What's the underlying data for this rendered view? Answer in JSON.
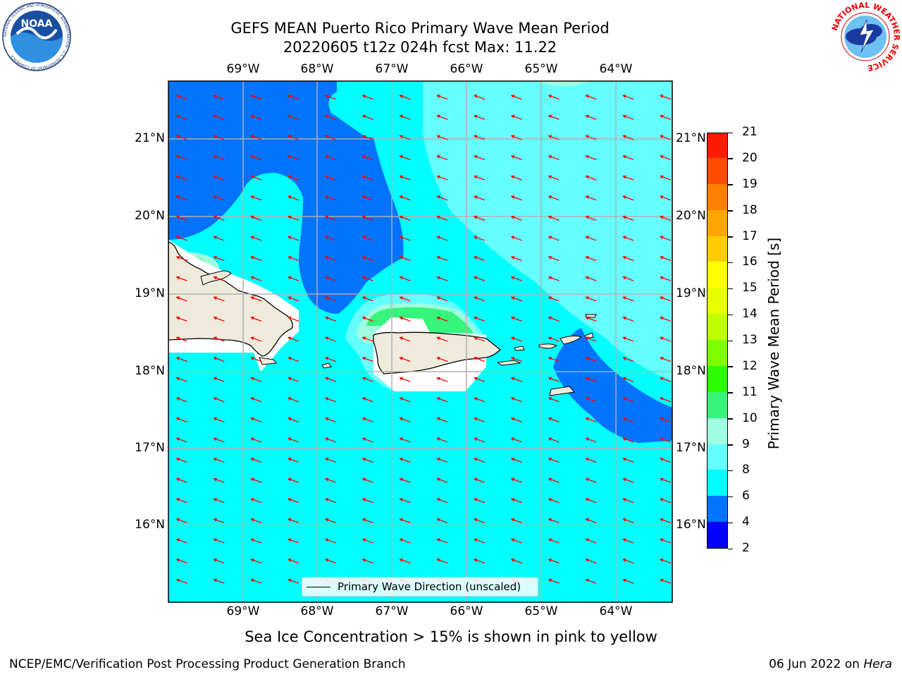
{
  "header": {
    "title_line1": "GEFS MEAN Puerto Rico Primary Wave Mean Period",
    "title_line2": "20220605 t12z 024h fcst   Max: 11.22"
  },
  "logos": {
    "noaa": {
      "text": "NOAA",
      "ring_text": "NATIONAL OCEANIC AND ATMOSPHERIC ADMINISTRATION · U.S. DEPARTMENT OF COMMERCE"
    },
    "nws": {
      "ring_text": "NATIONAL WEATHER SERVICE"
    }
  },
  "map": {
    "lon_labels": [
      "69°W",
      "68°W",
      "67°W",
      "66°W",
      "65°W",
      "64°W"
    ],
    "lat_labels": [
      "21°N",
      "20°N",
      "19°N",
      "18°N",
      "17°N",
      "16°N"
    ],
    "legend_label": "Primary Wave Direction (unscaled)",
    "colors": {
      "ocean": "#00ffff",
      "land": "#efebdc",
      "arrow": "#ff0000",
      "grid": "#b0b0b0"
    }
  },
  "colorbar": {
    "label": "Primary Wave Mean Period [s]",
    "ticks": [
      "2",
      "4",
      "6",
      "8",
      "9",
      "10",
      "11",
      "12",
      "13",
      "14",
      "15",
      "16",
      "17",
      "18",
      "19",
      "20",
      "21"
    ],
    "colors": [
      "#0000ff",
      "#0073ff",
      "#00ffff",
      "#66ffff",
      "#a0ffe0",
      "#36f57a",
      "#2bff00",
      "#7dff00",
      "#bfff00",
      "#e8ff00",
      "#ffff00",
      "#ffcc00",
      "#ffa500",
      "#ff7f00",
      "#ff4c00",
      "#ff1a00"
    ]
  },
  "caption": "Sea Ice Concentration > 15% is shown in pink to yellow",
  "footer": {
    "left": "NCEP/EMC/Verification Post Processing Product Generation Branch",
    "right_prefix": "06 Jun 2022 on ",
    "right_machine": "Hera"
  }
}
